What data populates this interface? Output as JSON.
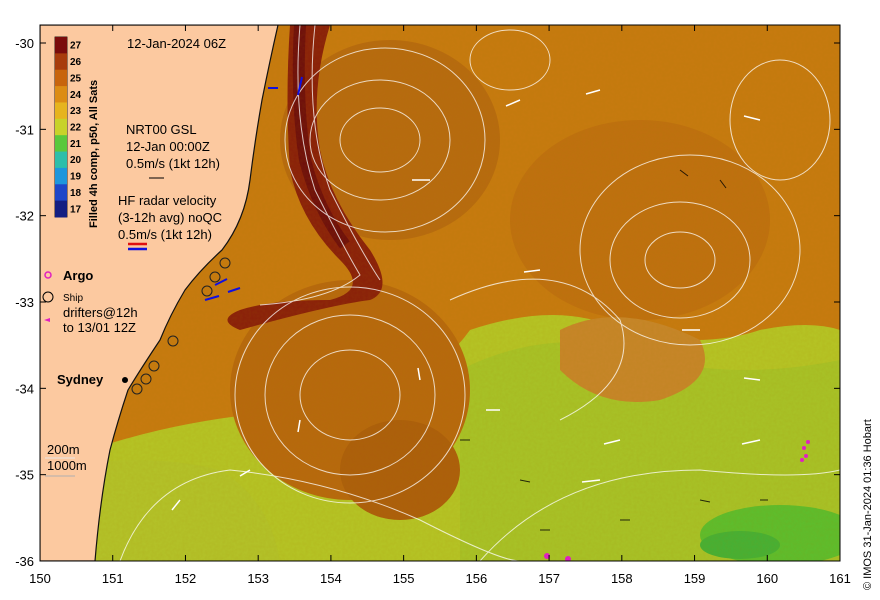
{
  "map": {
    "timestamp": "12-Jan-2024 06Z",
    "colorbar_label": "Filled 4h comp, p50, All Sats",
    "colorbar_ticks": [
      "27",
      "26",
      "25",
      "24",
      "23",
      "22",
      "21",
      "20",
      "19",
      "18",
      "17"
    ],
    "colorbar_colors": [
      "#7a0c0c",
      "#a83c0c",
      "#c8640c",
      "#dc8c14",
      "#e6b41e",
      "#c8d22a",
      "#5ac83c",
      "#2dbeaa",
      "#1e96dc",
      "#1e46c8",
      "#141e82"
    ],
    "gsl": {
      "title": "NRT00 GSL",
      "date": "12-Jan 00:00Z",
      "scale": "0.5m/s (1kt 12h)"
    },
    "hf_radar": {
      "title": "HF radar velocity",
      "avg": "(3-12h avg) noQC",
      "scale": "0.5m/s (1kt 12h)"
    },
    "legend": {
      "argo": "Argo",
      "ship": "Ship",
      "drifters_line1": "drifters@12h",
      "drifters_line2": "to 13/01 12Z"
    },
    "city": "Sydney",
    "isobaths": [
      "200m",
      "1000m"
    ],
    "x_ticks": [
      "150",
      "151",
      "152",
      "153",
      "154",
      "155",
      "156",
      "157",
      "158",
      "159",
      "160",
      "161"
    ],
    "y_ticks": [
      "-30",
      "-31",
      "-32",
      "-33",
      "-34",
      "-35",
      "-36"
    ],
    "credit": "© IMOS 31-Jan-2024 01:36 Hobart",
    "colors": {
      "land": "#fcc9a0",
      "coast": "#111111",
      "vector": "#ffffff",
      "argo": "#e020c0",
      "radar_red": "#e01010",
      "radar_blue": "#1010e0"
    }
  }
}
